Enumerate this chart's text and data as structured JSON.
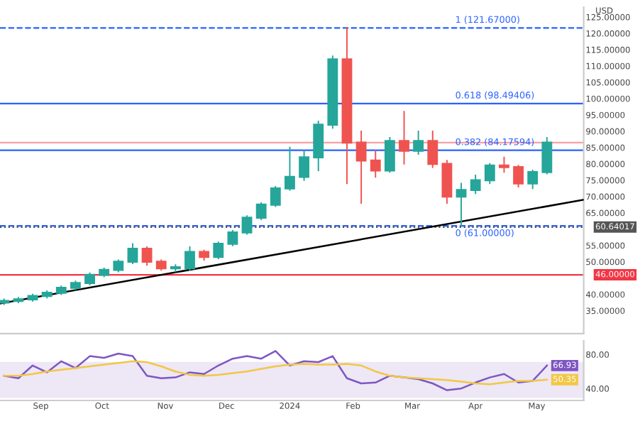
{
  "chart_data": [
    {
      "type": "candlestick",
      "ylabel": "USD",
      "x": [
        "2023-08-14",
        "2023-08-21",
        "2023-08-28",
        "2023-09-04",
        "2023-09-11",
        "2023-09-18",
        "2023-09-25",
        "2023-10-02",
        "2023-10-09",
        "2023-10-16",
        "2023-10-23",
        "2023-10-30",
        "2023-11-06",
        "2023-11-13",
        "2023-11-20",
        "2023-11-27",
        "2023-12-04",
        "2023-12-11",
        "2023-12-18",
        "2023-12-25",
        "2024-01-01",
        "2024-01-08",
        "2024-01-15",
        "2024-01-22",
        "2024-01-29",
        "2024-02-05",
        "2024-02-12",
        "2024-02-19",
        "2024-02-26",
        "2024-03-04",
        "2024-03-11",
        "2024-03-18",
        "2024-03-25",
        "2024-04-01",
        "2024-04-08",
        "2024-04-15",
        "2024-04-22",
        "2024-04-29",
        "2024-05-06"
      ],
      "ohlc": [
        [
          37.5,
          38.5,
          37,
          38
        ],
        [
          38,
          39,
          37.5,
          38.5
        ],
        [
          38.5,
          40,
          38,
          39.5
        ],
        [
          39.5,
          41,
          39,
          40.5
        ],
        [
          40.5,
          42.5,
          40,
          42
        ],
        [
          42,
          44,
          41.5,
          43.5
        ],
        [
          43.5,
          46.5,
          43,
          46
        ],
        [
          46,
          48,
          45.5,
          47.5
        ],
        [
          47.5,
          50.5,
          47,
          50
        ],
        [
          50,
          55.5,
          49.5,
          54
        ],
        [
          54,
          54.5,
          49,
          50
        ],
        [
          50,
          50.5,
          47.5,
          48
        ],
        [
          48,
          49,
          47,
          48
        ],
        [
          48,
          54.5,
          47.5,
          53
        ],
        [
          53,
          53.5,
          50.5,
          51.5
        ],
        [
          51.5,
          56,
          51,
          55.5
        ],
        [
          55.5,
          59.5,
          55,
          59
        ],
        [
          59,
          64,
          58.5,
          63.5
        ],
        [
          63.5,
          68,
          63,
          67.5
        ],
        [
          67.5,
          73,
          67,
          72.5
        ],
        [
          72.5,
          85,
          72,
          76
        ],
        [
          76,
          84,
          75,
          82
        ],
        [
          82,
          93,
          78,
          92
        ],
        [
          92,
          113,
          91,
          112
        ],
        [
          112,
          121.67,
          74,
          86.5
        ],
        [
          86.5,
          90,
          68,
          81
        ],
        [
          81,
          84,
          76,
          78
        ],
        [
          78,
          88,
          77.5,
          87
        ],
        [
          87,
          96,
          80,
          84
        ],
        [
          84,
          90,
          83,
          87
        ],
        [
          87,
          90,
          79,
          80
        ],
        [
          80,
          81,
          68,
          70
        ],
        [
          70,
          74,
          61,
          72
        ],
        [
          72,
          76.5,
          71,
          75
        ],
        [
          75,
          80,
          74,
          79.5
        ],
        [
          79.5,
          82,
          77.5,
          79
        ],
        [
          79,
          79.5,
          73,
          74
        ],
        [
          74,
          78,
          72.5,
          77.5
        ],
        [
          77.5,
          88,
          77,
          86.5
        ]
      ],
      "colors": [
        "#26a69a",
        "#26a69a",
        "#26a69a",
        "#26a69a",
        "#26a69a",
        "#26a69a",
        "#26a69a",
        "#26a69a",
        "#26a69a",
        "#26a69a",
        "#ef5350",
        "#ef5350",
        "#26a69a",
        "#26a69a",
        "#ef5350",
        "#26a69a",
        "#26a69a",
        "#26a69a",
        "#26a69a",
        "#26a69a",
        "#26a69a",
        "#26a69a",
        "#26a69a",
        "#26a69a",
        "#ef5350",
        "#ef5350",
        "#ef5350",
        "#26a69a",
        "#ef5350",
        "#26a69a",
        "#ef5350",
        "#ef5350",
        "#26a69a",
        "#26a69a",
        "#26a69a",
        "#ef5350",
        "#ef5350",
        "#26a69a",
        "#26a69a"
      ],
      "series": [
        {
          "type": "line",
          "color": "#000000",
          "x": [
            "2023-08-12",
            "2024-05-24"
          ],
          "values": [
            37.2,
            69
          ]
        }
      ],
      "xlim": [
        "2023-08-12",
        "2024-05-24"
      ],
      "ylim": [
        28,
        128
      ],
      "yticks": [
        {
          "value": 35,
          "label": "35.00000"
        },
        {
          "value": 40,
          "label": "40.00000"
        },
        {
          "value": 45,
          "label": null
        },
        {
          "value": 50,
          "label": "50.00000"
        },
        {
          "value": 55,
          "label": "55.00000"
        },
        {
          "value": 60,
          "label": null
        },
        {
          "value": 65,
          "label": "65.00000"
        },
        {
          "value": 70,
          "label": "70.00000"
        },
        {
          "value": 75,
          "label": "75.00000"
        },
        {
          "value": 80,
          "label": "80.00000"
        },
        {
          "value": 85,
          "label": "85.00000"
        },
        {
          "value": 90,
          "label": "90.00000"
        },
        {
          "value": 95,
          "label": "95.00000"
        },
        {
          "value": 100,
          "label": "100.00000"
        },
        {
          "value": 105,
          "label": "105.00000"
        },
        {
          "value": 110,
          "label": "110.00000"
        },
        {
          "value": 115,
          "label": "115.00000"
        },
        {
          "value": 120,
          "label": "120.00000"
        },
        {
          "value": 125,
          "label": "125.00000"
        }
      ],
      "ref_lines": [
        {
          "axis": "y",
          "value": 121.67,
          "label": "1 (121.67000)",
          "color": "#2962ff",
          "line_style": "dashed"
        },
        {
          "axis": "y",
          "value": 98.49406,
          "label": "0.618 (98.49406)",
          "color": "#2962ff",
          "line_style": "solid"
        },
        {
          "axis": "y",
          "value": 84.17594,
          "label": "0.382 (84.17594)",
          "color": "#2962ff",
          "line_style": "solid"
        },
        {
          "axis": "y",
          "value": 61.0,
          "label": "0 (61.00000)",
          "color": "#2962ff",
          "line_style": "dashed"
        },
        {
          "axis": "y",
          "value": 60.64017,
          "label": "60.64017",
          "color": "#555555",
          "line_style": "dotted"
        },
        {
          "axis": "y",
          "value": 46.0,
          "label": "46.00000",
          "color": "#f23645",
          "line_style": "solid"
        },
        {
          "axis": "y",
          "value": 86.5,
          "color": "#f7a1a8",
          "line_style": "solid"
        }
      ],
      "grid": false,
      "tick_labels": "y"
    },
    {
      "type": "line",
      "x": [
        "2023-08-14",
        "2023-08-21",
        "2023-08-28",
        "2023-09-04",
        "2023-09-11",
        "2023-09-18",
        "2023-09-25",
        "2023-10-02",
        "2023-10-09",
        "2023-10-16",
        "2023-10-23",
        "2023-10-30",
        "2023-11-06",
        "2023-11-13",
        "2023-11-20",
        "2023-11-27",
        "2023-12-04",
        "2023-12-11",
        "2023-12-18",
        "2023-12-25",
        "2024-01-01",
        "2024-01-08",
        "2024-01-15",
        "2024-01-22",
        "2024-01-29",
        "2024-02-05",
        "2024-02-12",
        "2024-02-19",
        "2024-02-26",
        "2024-03-04",
        "2024-03-11",
        "2024-03-18",
        "2024-03-25",
        "2024-04-01",
        "2024-04-08",
        "2024-04-15",
        "2024-04-22",
        "2024-04-29",
        "2024-05-06"
      ],
      "series": [
        {
          "color": "#7e57c2",
          "values": [
            55,
            52,
            67,
            59,
            72,
            64,
            78,
            76,
            81,
            78,
            55,
            52,
            53,
            59,
            57,
            67,
            75,
            78,
            75,
            84,
            67,
            72,
            71,
            78,
            52,
            46,
            47,
            55,
            53,
            51,
            46,
            38,
            40,
            47,
            53,
            57,
            47,
            49,
            66.93
          ],
          "value_labels": [
            null,
            null,
            null,
            null,
            null,
            null,
            null,
            null,
            null,
            null,
            null,
            null,
            null,
            null,
            null,
            null,
            null,
            null,
            null,
            null,
            null,
            null,
            null,
            null,
            null,
            null,
            null,
            null,
            null,
            null,
            null,
            null,
            null,
            null,
            null,
            null,
            null,
            null,
            "66.93"
          ]
        },
        {
          "color": "#f2c744",
          "values": [
            55,
            55,
            57,
            60,
            62,
            64,
            66,
            68,
            70,
            72,
            71,
            66,
            60,
            56,
            55,
            56,
            58,
            60,
            63,
            66,
            68,
            69,
            68,
            68,
            69,
            67,
            60,
            55,
            53,
            52,
            51,
            50,
            48,
            46,
            45,
            47,
            49,
            49,
            50.35
          ],
          "value_labels": [
            null,
            null,
            null,
            null,
            null,
            null,
            null,
            null,
            null,
            null,
            null,
            null,
            null,
            null,
            null,
            null,
            null,
            null,
            null,
            null,
            null,
            null,
            null,
            null,
            null,
            null,
            null,
            null,
            null,
            null,
            null,
            null,
            null,
            null,
            null,
            null,
            null,
            null,
            "50.35"
          ]
        }
      ],
      "bands": [
        {
          "axis": "y",
          "from": 30,
          "to": 70,
          "color": "#ede7f6"
        }
      ],
      "xlim": [
        "2023-08-12",
        "2024-05-24"
      ],
      "xticks": [
        {
          "value": "2023-09-01",
          "label": "Sep"
        },
        {
          "value": "2023-10-01",
          "label": "Oct"
        },
        {
          "value": "2023-11-01",
          "label": "Nov"
        },
        {
          "value": "2023-12-01",
          "label": "Dec"
        },
        {
          "value": "2024-01-01",
          "label": "2024"
        },
        {
          "value": "2024-02-01",
          "label": "Feb"
        },
        {
          "value": "2024-03-01",
          "label": "Mar"
        },
        {
          "value": "2024-04-01",
          "label": "Apr"
        },
        {
          "value": "2024-05-01",
          "label": "May"
        }
      ],
      "ylim": [
        26,
        96
      ],
      "yticks": [
        {
          "value": 80,
          "label": "80.00"
        },
        {
          "value": 40,
          "label": "40.00"
        }
      ],
      "grid": false
    }
  ]
}
